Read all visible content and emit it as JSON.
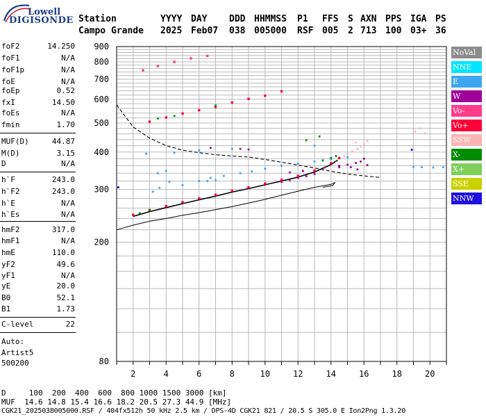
{
  "logo": {
    "line1": "Lowell",
    "line2": "DIGISONDE"
  },
  "header": {
    "row1": [
      "Station",
      "YYYY",
      "DAY",
      "DDD",
      "HHMMSS",
      "P1",
      "FFS",
      "S",
      "AXN",
      "PPS",
      "IGA",
      "PS"
    ],
    "row2": [
      "Campo Grande",
      "2025",
      "Feb07",
      "038",
      "005000",
      "RSF",
      "005",
      "2",
      "713",
      "100",
      "03+",
      "36"
    ]
  },
  "params": {
    "group1": [
      {
        "name": "foF2",
        "value": "14.250"
      },
      {
        "name": "foF1",
        "value": "N/A"
      },
      {
        "name": "foF1p",
        "value": "N/A"
      },
      {
        "name": "foE",
        "value": "N/A"
      },
      {
        "name": "foEp",
        "value": "0.52"
      },
      {
        "name": "fxI",
        "value": "14.50"
      },
      {
        "name": "foEs",
        "value": "N/A"
      },
      {
        "name": "fmin",
        "value": "1.70"
      }
    ],
    "group2": [
      {
        "name": "MUF(D)",
        "value": "44.87"
      },
      {
        "name": "M(D)",
        "value": "3.15"
      },
      {
        "name": "D",
        "value": "N/A"
      }
    ],
    "group3": [
      {
        "name": "h`F",
        "value": "243.0"
      },
      {
        "name": "h`F2",
        "value": "243.0"
      },
      {
        "name": "h`E",
        "value": "N/A"
      },
      {
        "name": "h`Es",
        "value": "N/A"
      }
    ],
    "group4": [
      {
        "name": "hmF2",
        "value": "317.0"
      },
      {
        "name": "hmF1",
        "value": "N/A"
      },
      {
        "name": "hmE",
        "value": "110.0"
      },
      {
        "name": "yF2",
        "value": "49.6"
      },
      {
        "name": "yF1",
        "value": "N/A"
      },
      {
        "name": "yE",
        "value": "20.0"
      },
      {
        "name": "B0",
        "value": "52.1"
      },
      {
        "name": "B1",
        "value": "1.73"
      }
    ],
    "group5": [
      {
        "name": "C-level",
        "value": "22"
      }
    ]
  },
  "autoscaling": {
    "line1": "Auto:",
    "line2": "Artist5",
    "line3": "500200"
  },
  "legend": [
    {
      "label": "NoVal",
      "bg": "#8c8c8c",
      "fg": "#ffffff"
    },
    {
      "label": "NNE",
      "bg": "#00e5ff",
      "fg": "#ffffff"
    },
    {
      "label": "E",
      "bg": "#3ea6f0",
      "fg": "#ffffff"
    },
    {
      "label": "W",
      "bg": "#a0009a",
      "fg": "#ffffff"
    },
    {
      "label": "Vo-",
      "bg": "#ff3c8c",
      "fg": "#ffffff"
    },
    {
      "label": "Vo+",
      "bg": "#ff0038",
      "fg": "#ffffff"
    },
    {
      "label": "SSW",
      "bg": "#ffb4b4",
      "fg": "#ffffff"
    },
    {
      "label": "X-",
      "bg": "#008c00",
      "fg": "#ffffff"
    },
    {
      "label": "X+",
      "bg": "#7dcf5a",
      "fg": "#ffffff"
    },
    {
      "label": "SSE",
      "bg": "#c8d200",
      "fg": "#ffffff"
    },
    {
      "label": "NNW",
      "bg": "#1e10e0",
      "fg": "#ffffff"
    }
  ],
  "footer": {
    "line1": "D     100  200  400  600  800 1000 1500 3000 [km]",
    "line2": "MUF  14.6 14.8 15.4 16.6 18.2 20.5 27.3 44.9 [MHz]",
    "line3": "CGK21_2025038005000.RSF / 404fx512h 50 kHz 2.5 km / DPS-4D CGK21 821 / 20.5 S 305.0 E Ion2Png 1.3.20"
  },
  "chart_data": {
    "type": "scatter",
    "xlim": [
      1,
      21
    ],
    "ylim": [
      80,
      900
    ],
    "x_ticks": [
      "2",
      "4",
      "6",
      "8",
      "10",
      "12",
      "14",
      "16",
      "18",
      "20"
    ],
    "y_ticks": [
      "80",
      "200",
      "300",
      "400",
      "500",
      "600",
      "700",
      "800",
      "900"
    ],
    "y_scale": "log",
    "grid": true,
    "series": [
      {
        "name": "Vo+",
        "color": "#ff0038",
        "kind": "trace",
        "points": [
          [
            2,
            247
          ],
          [
            3,
            256
          ],
          [
            4,
            264
          ],
          [
            5,
            272
          ],
          [
            6,
            280
          ],
          [
            7,
            288
          ],
          [
            8,
            297
          ],
          [
            9,
            305
          ],
          [
            10,
            314
          ],
          [
            11,
            323
          ],
          [
            12,
            333
          ],
          [
            13,
            347
          ],
          [
            14,
            367
          ],
          [
            14.5,
            382
          ]
        ]
      },
      {
        "name": "Vo+",
        "color": "#ff0038",
        "kind": "trace",
        "points": [
          [
            3,
            505
          ],
          [
            4,
            522
          ],
          [
            5,
            538
          ],
          [
            6,
            552
          ],
          [
            7,
            566
          ],
          [
            8,
            585
          ],
          [
            9,
            602
          ],
          [
            10,
            617
          ],
          [
            11,
            638
          ]
        ]
      },
      {
        "name": "Vo-",
        "color": "#ff3c8c",
        "kind": "trace",
        "points": [
          [
            2.6,
            750
          ],
          [
            3.5,
            775
          ],
          [
            4.5,
            800
          ],
          [
            5.5,
            822
          ],
          [
            6.5,
            838
          ]
        ]
      },
      {
        "name": "E",
        "color": "#3ea6f0",
        "kind": "cloud",
        "points": [
          [
            3.2,
            295
          ],
          [
            3.6,
            304
          ],
          [
            4.2,
            318
          ],
          [
            5,
            310
          ],
          [
            6,
            320
          ],
          [
            6.7,
            328
          ],
          [
            7.5,
            333
          ],
          [
            8.5,
            340
          ],
          [
            9.2,
            345
          ],
          [
            10,
            352
          ],
          [
            11,
            360
          ],
          [
            12,
            366
          ],
          [
            13,
            372
          ],
          [
            14,
            378
          ],
          [
            15,
            384
          ],
          [
            3.5,
            340
          ],
          [
            4,
            346
          ],
          [
            6.5,
            320
          ],
          [
            7,
            322
          ],
          [
            19,
            357
          ],
          [
            19.5,
            356
          ],
          [
            20.2,
            355
          ],
          [
            20.8,
            356
          ],
          [
            2.8,
            395
          ],
          [
            4.5,
            398
          ],
          [
            6,
            405
          ],
          [
            8,
            410
          ],
          [
            13,
            420
          ]
        ]
      },
      {
        "name": "W",
        "color": "#a0009a",
        "kind": "cloud",
        "points": [
          [
            11,
            318
          ],
          [
            11.5,
            322
          ],
          [
            12,
            328
          ],
          [
            12.5,
            332
          ],
          [
            13,
            338
          ],
          [
            11.5,
            342
          ],
          [
            12.3,
            346
          ],
          [
            13.6,
            355
          ],
          [
            14.5,
            360
          ],
          [
            15,
            363
          ],
          [
            15.5,
            368
          ],
          [
            15.8,
            372
          ],
          [
            16,
            380
          ],
          [
            15.2,
            356
          ],
          [
            15.6,
            350
          ],
          [
            8.5,
            410
          ],
          [
            9,
            408
          ],
          [
            6.7,
            413
          ],
          [
            14.5,
            356
          ],
          [
            16.2,
            362
          ]
        ]
      },
      {
        "name": "SSW",
        "color": "#ffb4b4",
        "kind": "cloud",
        "points": [
          [
            14.8,
            388
          ],
          [
            15,
            395
          ],
          [
            15.3,
            402
          ],
          [
            15.6,
            410
          ],
          [
            15.8,
            418
          ],
          [
            16,
            425
          ],
          [
            15.5,
            430
          ],
          [
            16.2,
            435
          ],
          [
            19.1,
            468
          ],
          [
            19.4,
            480
          ],
          [
            19.7,
            462
          ]
        ]
      },
      {
        "name": "X-",
        "color": "#008c00",
        "kind": "cloud",
        "points": [
          [
            2.4,
            250
          ],
          [
            3,
            256
          ],
          [
            3.5,
            518
          ],
          [
            4.5,
            528
          ],
          [
            7,
            572
          ],
          [
            13.5,
            375
          ],
          [
            14,
            382
          ],
          [
            14.3,
            388
          ],
          [
            12.5,
            438
          ],
          [
            13.3,
            451
          ]
        ]
      },
      {
        "name": "NNW",
        "color": "#1e10e0",
        "kind": "cloud",
        "points": [
          [
            1.1,
            305
          ],
          [
            18.9,
            407
          ]
        ]
      }
    ],
    "lines": [
      {
        "name": "",
        "style": "dashed",
        "points": [
          [
            1,
            575
          ],
          [
            2,
            485
          ],
          [
            3,
            445
          ],
          [
            4,
            420
          ],
          [
            5,
            406
          ],
          [
            6,
            398
          ],
          [
            7,
            392
          ],
          [
            8,
            388
          ],
          [
            9,
            385
          ],
          [
            10,
            378
          ],
          [
            11,
            370
          ],
          [
            12,
            362
          ],
          [
            13,
            354
          ],
          [
            14,
            345
          ],
          [
            15,
            338
          ],
          [
            16,
            333
          ],
          [
            17,
            329
          ]
        ]
      },
      {
        "name": "",
        "style": "solid",
        "points": [
          [
            1,
            220
          ],
          [
            2,
            228
          ],
          [
            3,
            235
          ],
          [
            4,
            240
          ],
          [
            5,
            246
          ],
          [
            6,
            251
          ],
          [
            7,
            257
          ],
          [
            8,
            263
          ],
          [
            9,
            270
          ],
          [
            10,
            278
          ],
          [
            11,
            287
          ],
          [
            12,
            296
          ],
          [
            13,
            305
          ],
          [
            14,
            312
          ],
          [
            14.25,
            317
          ],
          [
            14.1,
            309
          ],
          [
            13.5,
            305
          ]
        ]
      },
      {
        "name": "",
        "style": "solid",
        "points": [
          [
            2,
            244
          ],
          [
            3,
            253
          ],
          [
            4,
            261
          ],
          [
            5,
            269
          ],
          [
            6,
            277
          ],
          [
            7,
            285
          ],
          [
            8,
            294
          ],
          [
            9,
            302
          ],
          [
            10,
            311
          ],
          [
            11,
            320
          ],
          [
            12,
            330
          ],
          [
            13,
            343
          ],
          [
            14,
            363
          ],
          [
            14.4,
            376
          ]
        ]
      }
    ]
  }
}
